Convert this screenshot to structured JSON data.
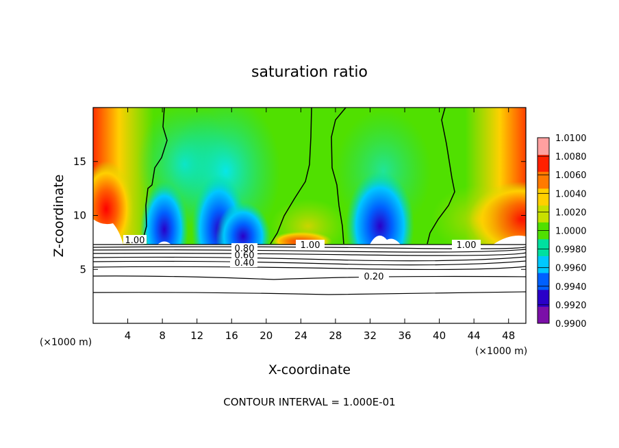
{
  "chart_data": {
    "type": "heatmap",
    "title": "saturation ratio",
    "xlabel": "X-coordinate",
    "ylabel": "Z-coordinate",
    "x_unit_label": "(×1000 m)",
    "z_unit_label": "(×1000 m)",
    "footer": "CONTOUR INTERVAL = 1.000E-01",
    "xlim": [
      0,
      50
    ],
    "ylim": [
      0,
      20
    ],
    "x_ticks": [
      "4",
      "8",
      "12",
      "16",
      "20",
      "24",
      "28",
      "32",
      "36",
      "40",
      "44",
      "48"
    ],
    "y_ticks": [
      "5",
      "10",
      "15"
    ],
    "colorbar": {
      "min": 0.99,
      "max": 1.01,
      "labels": [
        "1.0100",
        "1.0080",
        "1.0060",
        "1.0040",
        "1.0020",
        "1.0000",
        "0.9980",
        "0.9960",
        "0.9940",
        "0.9920",
        "0.9900"
      ],
      "colors": [
        "#7b0fa8",
        "#2a00c8",
        "#0060ff",
        "#00c8ff",
        "#00e0a0",
        "#50e000",
        "#c8e000",
        "#ffd000",
        "#ff7a00",
        "#ff2000",
        "#ffa0a0"
      ]
    },
    "contour_labels": [
      "1.00",
      "1.00",
      "1.00",
      "0.80",
      "0.60",
      "0.40",
      "0.20"
    ]
  }
}
